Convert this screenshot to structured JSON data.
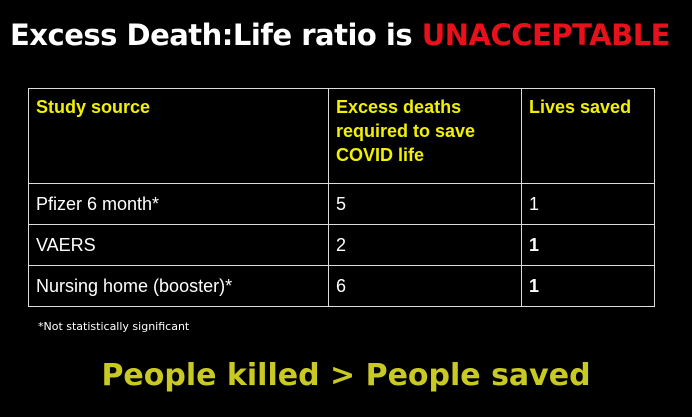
{
  "title": {
    "lead": "Excess Death:Life ratio is",
    "emphasis": "UNACCEPTABLE"
  },
  "table": {
    "headers": [
      "Study source",
      "Excess deaths required to save COVID life",
      "Lives saved"
    ],
    "rows": [
      [
        "Pfizer 6 month*",
        5,
        1
      ],
      [
        "VAERS",
        2,
        1
      ],
      [
        "Nursing home (booster)*",
        6,
        1
      ]
    ]
  },
  "note": "*Not statistically significant",
  "conclusion": "People killed > People saved"
}
